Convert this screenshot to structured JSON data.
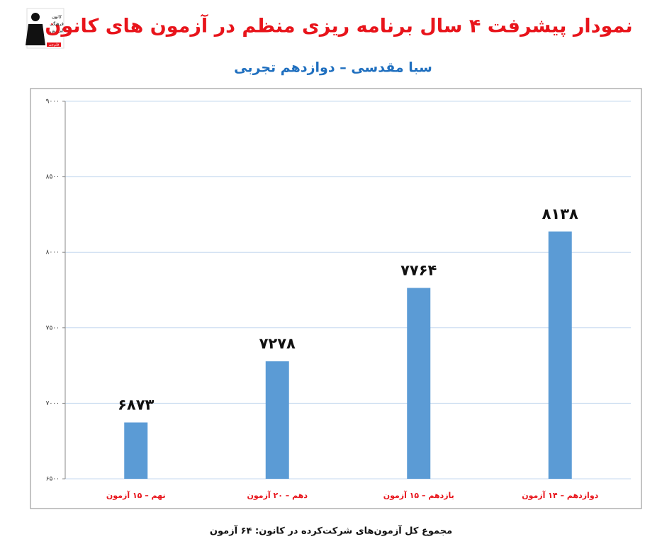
{
  "chart_data": {
    "type": "bar",
    "title": "نمودار پیشرفت ۴ سال برنامه ریزی منظم در آزمون های کانون",
    "subtitle": "سبا مقدسی – دوازدهم تجربی",
    "footer": "مجموع کل آزمون‌های شرکت‌کرده در کانون: ۶۴ آزمون",
    "logo_text": [
      "کانون",
      "فرهنگی",
      "آموزش",
      "قلم‌چی"
    ],
    "categories": [
      "نهم – ۱۵ آزمون",
      "دهم – ۲۰ آزمون",
      "یازدهم – ۱۵ آزمون",
      "دوازدهم – ۱۴ آزمون"
    ],
    "values": [
      6873,
      7278,
      7764,
      8138
    ],
    "value_labels": [
      "۶۸۷۳",
      "۷۲۷۸",
      "۷۷۶۴",
      "۸۱۳۸"
    ],
    "color": "#5b9bd5",
    "ylim": [
      6500,
      9000
    ],
    "yticks": [
      {
        "value": 6500,
        "label": "۶۵۰۰"
      },
      {
        "value": 7000,
        "label": "۷۰۰۰"
      },
      {
        "value": 7500,
        "label": "۷۵۰۰"
      },
      {
        "value": 8000,
        "label": "۸۰۰۰"
      },
      {
        "value": 8500,
        "label": "۸۵۰۰"
      },
      {
        "value": 9000,
        "label": "۹۰۰۰"
      }
    ],
    "grid": true
  }
}
